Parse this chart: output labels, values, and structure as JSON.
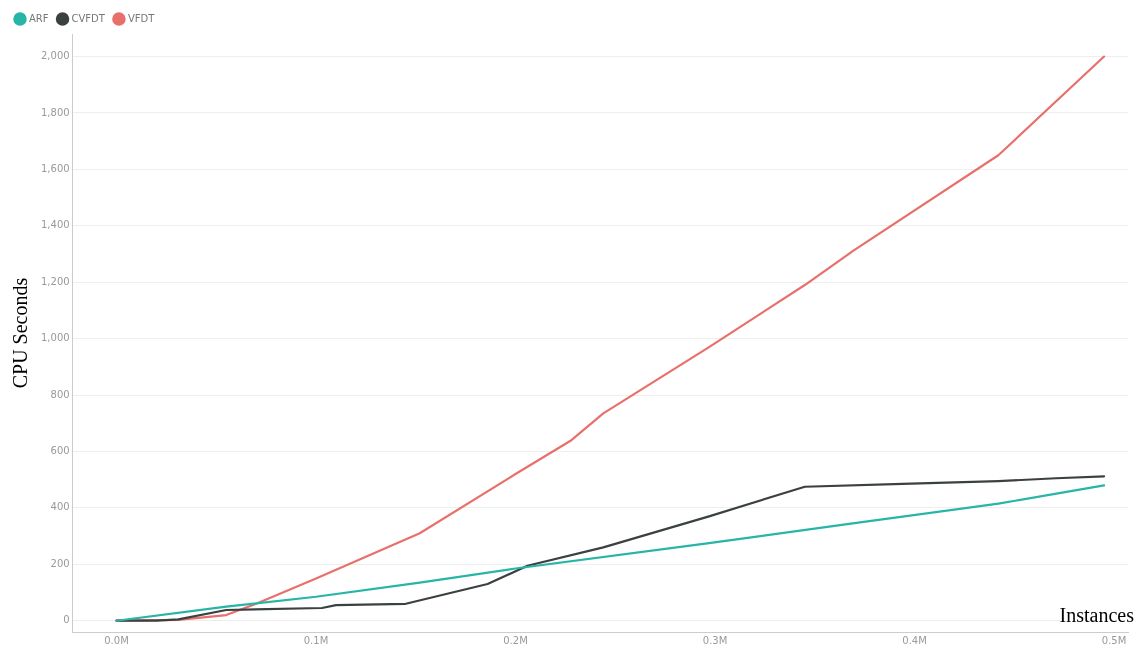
{
  "chart_data": {
    "type": "line",
    "xlabel": "Instances",
    "ylabel": "CPU Seconds",
    "xlim": [
      -0.022,
      0.507
    ],
    "ylim": [
      -40,
      2080
    ],
    "xticks": [
      {
        "value": 0,
        "label": "0.0M"
      },
      {
        "value": 0.1,
        "label": "0.1M"
      },
      {
        "value": 0.2,
        "label": "0.2M"
      },
      {
        "value": 0.3,
        "label": "0.3M"
      },
      {
        "value": 0.4,
        "label": "0.4M"
      },
      {
        "value": 0.5,
        "label": "0.5M"
      }
    ],
    "yticks": [
      {
        "value": 0,
        "label": "0"
      },
      {
        "value": 200,
        "label": "200"
      },
      {
        "value": 400,
        "label": "400"
      },
      {
        "value": 600,
        "label": "600"
      },
      {
        "value": 800,
        "label": "800"
      },
      {
        "value": 1000,
        "label": "1,000"
      },
      {
        "value": 1200,
        "label": "1,200"
      },
      {
        "value": 1400,
        "label": "1,400"
      },
      {
        "value": 1600,
        "label": "1,600"
      },
      {
        "value": 1800,
        "label": "1,800"
      },
      {
        "value": 2000,
        "label": "2,000"
      }
    ],
    "grid": "y",
    "legend": "top left",
    "marker": "none",
    "line_style": "solid",
    "series": [
      {
        "name": "ARF",
        "color": "#26b5a6",
        "x": [
          0,
          0.055,
          0.1,
          0.152,
          0.2,
          0.297,
          0.369,
          0.442,
          0.495
        ],
        "values": [
          0,
          50,
          85,
          135,
          185,
          275,
          345,
          415,
          480
        ]
      },
      {
        "name": "CVFDT",
        "color": "#3b4040",
        "x": [
          0,
          0.02,
          0.031,
          0.055,
          0.103,
          0.11,
          0.145,
          0.186,
          0.206,
          0.244,
          0.297,
          0.345,
          0.394,
          0.442,
          0.471,
          0.495
        ],
        "values": [
          0,
          0,
          5,
          38,
          45,
          55,
          60,
          130,
          195,
          260,
          370,
          475,
          485,
          495,
          505,
          512
        ]
      },
      {
        "name": "VFDT",
        "color": "#e8706c",
        "x": [
          0,
          0.031,
          0.055,
          0.07,
          0.1,
          0.152,
          0.2,
          0.228,
          0.244,
          0.297,
          0.345,
          0.369,
          0.442,
          0.495
        ],
        "values": [
          0,
          3,
          20,
          60,
          150,
          310,
          520,
          640,
          735,
          970,
          1190,
          1310,
          1650,
          2000
        ]
      }
    ]
  }
}
